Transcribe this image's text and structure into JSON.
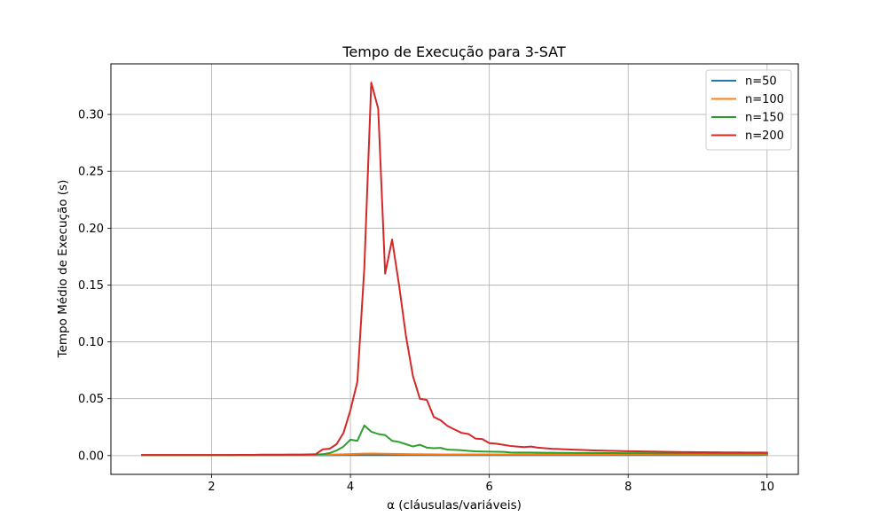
{
  "chart_data": {
    "type": "line",
    "title": "Tempo de Execução para 3-SAT",
    "xlabel": "α (cláusulas/variáveis)",
    "ylabel": "Tempo Médio de Execução (s)",
    "xlim": [
      0.55,
      10.45
    ],
    "ylim": [
      -0.0165,
      0.3445
    ],
    "x_ticks": [
      2,
      4,
      6,
      8,
      10
    ],
    "x_tick_labels": [
      "2",
      "4",
      "6",
      "8",
      "10"
    ],
    "y_ticks": [
      0.0,
      0.05,
      0.1,
      0.15,
      0.2,
      0.25,
      0.3
    ],
    "y_tick_labels": [
      "0.00",
      "0.05",
      "0.10",
      "0.15",
      "0.20",
      "0.25",
      "0.30"
    ],
    "grid": true,
    "legend_position": "top-right",
    "x": [
      1.0,
      1.1,
      1.2,
      1.3,
      1.4,
      1.5,
      1.6,
      1.7,
      1.8,
      1.9,
      2.0,
      2.1,
      2.2,
      2.3,
      2.4,
      2.5,
      2.6,
      2.7,
      2.8,
      2.9,
      3.0,
      3.1,
      3.2,
      3.3,
      3.4,
      3.5,
      3.6,
      3.7,
      3.8,
      3.9,
      4.0,
      4.1,
      4.2,
      4.3,
      4.4,
      4.5,
      4.6,
      4.7,
      4.8,
      4.9,
      5.0,
      5.1,
      5.2,
      5.3,
      5.4,
      5.5,
      5.6,
      5.7,
      5.8,
      5.9,
      6.0,
      6.1,
      6.2,
      6.3,
      6.4,
      6.5,
      6.6,
      6.7,
      6.8,
      6.9,
      7.0,
      7.1,
      7.2,
      7.3,
      7.4,
      7.5,
      7.6,
      7.7,
      7.8,
      7.9,
      8.0,
      8.1,
      8.2,
      8.3,
      8.4,
      8.5,
      8.6,
      8.7,
      8.8,
      8.9,
      9.0,
      9.1,
      9.2,
      9.3,
      9.4,
      9.5,
      9.6,
      9.7,
      9.8,
      9.9,
      10.0
    ],
    "series": [
      {
        "name": "n=50",
        "color": "#1f77b4",
        "values": [
          0.0004,
          0.0004,
          0.0004,
          0.0004,
          0.0004,
          0.0004,
          0.0004,
          0.0004,
          0.0004,
          0.0004,
          0.0004,
          0.0004,
          0.0004,
          0.0004,
          0.0004,
          0.0004,
          0.0004,
          0.0004,
          0.0004,
          0.0004,
          0.0004,
          0.0004,
          0.0004,
          0.0004,
          0.0004,
          0.0004,
          0.0004,
          0.0004,
          0.0004,
          0.0005,
          0.0005,
          0.0005,
          0.0005,
          0.0005,
          0.0005,
          0.0005,
          0.0005,
          0.0005,
          0.0005,
          0.0005,
          0.0005,
          0.0005,
          0.0005,
          0.0005,
          0.0005,
          0.0005,
          0.0005,
          0.0005,
          0.0005,
          0.0005,
          0.0005,
          0.0005,
          0.0005,
          0.0005,
          0.0005,
          0.0005,
          0.0005,
          0.0005,
          0.0005,
          0.0005,
          0.0005,
          0.0005,
          0.0005,
          0.0005,
          0.0005,
          0.0005,
          0.0005,
          0.0005,
          0.0005,
          0.0005,
          0.0005,
          0.0005,
          0.0005,
          0.0005,
          0.0005,
          0.0005,
          0.0005,
          0.0005,
          0.0005,
          0.0005,
          0.0005,
          0.0005,
          0.0005,
          0.0005,
          0.0005,
          0.0005,
          0.0005,
          0.0005,
          0.0005,
          0.0005,
          0.0006
        ]
      },
      {
        "name": "n=100",
        "color": "#ff7f0e",
        "values": [
          0.0004,
          0.0004,
          0.0004,
          0.0004,
          0.0004,
          0.0004,
          0.0004,
          0.0004,
          0.0004,
          0.0004,
          0.0004,
          0.0004,
          0.0004,
          0.0004,
          0.0004,
          0.0004,
          0.0005,
          0.0005,
          0.0005,
          0.0005,
          0.0005,
          0.0005,
          0.0005,
          0.0005,
          0.0005,
          0.0006,
          0.0007,
          0.0008,
          0.001,
          0.0011,
          0.0013,
          0.0015,
          0.0017,
          0.0018,
          0.0017,
          0.0016,
          0.0015,
          0.0014,
          0.0013,
          0.0012,
          0.0012,
          0.0011,
          0.0011,
          0.001,
          0.001,
          0.001,
          0.001,
          0.001,
          0.001,
          0.001,
          0.001,
          0.001,
          0.001,
          0.001,
          0.001,
          0.001,
          0.001,
          0.001,
          0.001,
          0.001,
          0.001,
          0.001,
          0.001,
          0.001,
          0.001,
          0.001,
          0.001,
          0.001,
          0.0012,
          0.001,
          0.0011,
          0.0011,
          0.0011,
          0.0011,
          0.0011,
          0.0011,
          0.0011,
          0.0011,
          0.0011,
          0.0011,
          0.0011,
          0.0011,
          0.0011,
          0.0011,
          0.0011,
          0.0011,
          0.0011,
          0.0011,
          0.0011,
          0.0011,
          0.0012
        ]
      },
      {
        "name": "n=150",
        "color": "#2ca02c",
        "values": [
          0.0005,
          0.0005,
          0.0005,
          0.0005,
          0.0005,
          0.0005,
          0.0005,
          0.0005,
          0.0005,
          0.0005,
          0.0005,
          0.0005,
          0.0005,
          0.0005,
          0.0006,
          0.0006,
          0.0006,
          0.0006,
          0.0006,
          0.0006,
          0.0006,
          0.0007,
          0.0007,
          0.0007,
          0.0008,
          0.0009,
          0.0012,
          0.0022,
          0.0045,
          0.008,
          0.014,
          0.013,
          0.0265,
          0.021,
          0.019,
          0.018,
          0.013,
          0.012,
          0.01,
          0.008,
          0.0095,
          0.007,
          0.0065,
          0.0068,
          0.0052,
          0.005,
          0.0047,
          0.0042,
          0.0038,
          0.0036,
          0.0035,
          0.0034,
          0.0033,
          0.0028,
          0.0027,
          0.0027,
          0.0027,
          0.0026,
          0.0025,
          0.0025,
          0.0024,
          0.0024,
          0.0023,
          0.0023,
          0.0023,
          0.0022,
          0.0022,
          0.0022,
          0.0022,
          0.0021,
          0.0021,
          0.0021,
          0.0021,
          0.0021,
          0.002,
          0.002,
          0.002,
          0.002,
          0.002,
          0.002,
          0.002,
          0.002,
          0.0019,
          0.0019,
          0.0019,
          0.0019,
          0.0019,
          0.0019,
          0.0019,
          0.0019,
          0.0019
        ]
      },
      {
        "name": "n=200",
        "color": "#d62728",
        "values": [
          0.0006,
          0.0006,
          0.0006,
          0.0006,
          0.0006,
          0.0006,
          0.0006,
          0.0006,
          0.0006,
          0.0006,
          0.0006,
          0.0006,
          0.0006,
          0.0006,
          0.0007,
          0.0007,
          0.0007,
          0.0008,
          0.0008,
          0.0008,
          0.0008,
          0.0009,
          0.0009,
          0.0009,
          0.001,
          0.0012,
          0.0055,
          0.006,
          0.01,
          0.02,
          0.04,
          0.065,
          0.165,
          0.328,
          0.305,
          0.16,
          0.19,
          0.15,
          0.105,
          0.07,
          0.05,
          0.049,
          0.034,
          0.031,
          0.026,
          0.023,
          0.02,
          0.019,
          0.015,
          0.0145,
          0.011,
          0.0105,
          0.0095,
          0.0085,
          0.008,
          0.0075,
          0.008,
          0.007,
          0.0065,
          0.006,
          0.0058,
          0.0055,
          0.0052,
          0.005,
          0.0048,
          0.0046,
          0.0045,
          0.0043,
          0.0042,
          0.004,
          0.0039,
          0.0038,
          0.0037,
          0.0036,
          0.0035,
          0.0034,
          0.0033,
          0.0032,
          0.0031,
          0.0031,
          0.003,
          0.003,
          0.0029,
          0.0029,
          0.0028,
          0.0028,
          0.0028,
          0.0027,
          0.0027,
          0.0027,
          0.0026
        ]
      }
    ]
  }
}
